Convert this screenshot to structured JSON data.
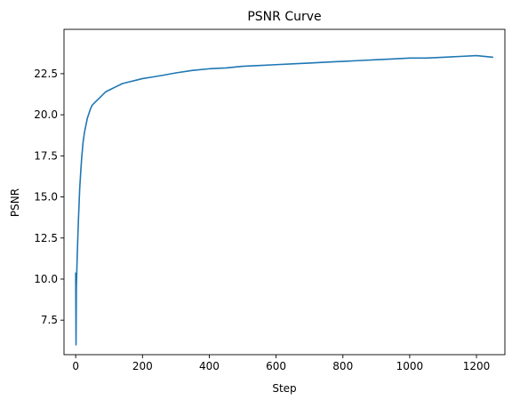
{
  "chart_data": {
    "type": "line",
    "title": "PSNR Curve",
    "xlabel": "Step",
    "ylabel": "PSNR",
    "xlim": [
      -35,
      1285
    ],
    "ylim": [
      5.4,
      25.2
    ],
    "xticks": [
      0,
      200,
      400,
      600,
      800,
      1000,
      1200
    ],
    "xtick_labels": [
      "0",
      "200",
      "400",
      "600",
      "800",
      "1000",
      "1200"
    ],
    "yticks": [
      7.5,
      10.0,
      12.5,
      15.0,
      17.5,
      20.0,
      22.5
    ],
    "ytick_labels": [
      "7.5",
      "10.0",
      "12.5",
      "15.0",
      "17.5",
      "20.0",
      "22.5"
    ],
    "grid": false,
    "series": [
      {
        "color": "#1f77b4",
        "x": [
          0,
          1,
          2,
          3,
          4,
          6,
          8,
          10,
          12,
          15,
          18,
          22,
          26,
          30,
          35,
          40,
          45,
          50,
          55,
          60,
          65,
          70,
          80,
          90,
          100,
          120,
          140,
          160,
          180,
          200,
          230,
          260,
          300,
          350,
          400,
          450,
          500,
          550,
          600,
          650,
          700,
          750,
          800,
          850,
          900,
          950,
          1000,
          1050,
          1100,
          1150,
          1200,
          1250
        ],
        "y": [
          10.4,
          6.0,
          9.5,
          10.2,
          11.0,
          12.3,
          13.5,
          14.5,
          15.5,
          16.5,
          17.4,
          18.3,
          18.9,
          19.3,
          19.8,
          20.1,
          20.4,
          20.6,
          20.7,
          20.8,
          20.9,
          21.0,
          21.2,
          21.4,
          21.5,
          21.7,
          21.9,
          22.0,
          22.1,
          22.2,
          22.3,
          22.4,
          22.55,
          22.7,
          22.8,
          22.85,
          22.95,
          23.0,
          23.05,
          23.1,
          23.15,
          23.2,
          23.25,
          23.3,
          23.35,
          23.4,
          23.45,
          23.45,
          23.5,
          23.55,
          23.6,
          23.5
        ]
      }
    ]
  }
}
